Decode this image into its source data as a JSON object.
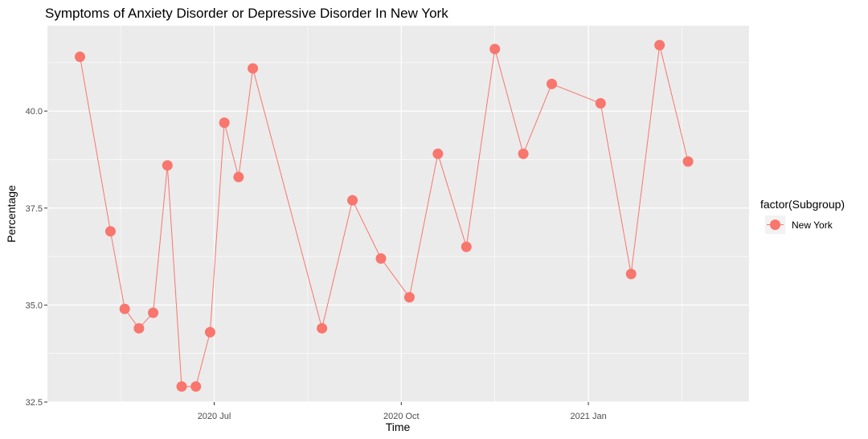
{
  "chart_data": {
    "type": "line",
    "title": "Symptoms of Anxiety Disorder or Depressive Disorder In New York",
    "xlabel": "Time",
    "ylabel": "Percentage",
    "x_ticks": [
      {
        "date": "2020-07-01",
        "label": "2020 Jul"
      },
      {
        "date": "2020-10-01",
        "label": "2020 Oct"
      },
      {
        "date": "2021-01-01",
        "label": "2021 Jan"
      }
    ],
    "y_ticks": [
      32.5,
      35.0,
      37.5,
      40.0
    ],
    "y_tick_labels": [
      "32.5",
      "35.0",
      "37.5",
      "40.0"
    ],
    "xlim": [
      "2020-04-10",
      "2021-03-21"
    ],
    "ylim": [
      32.5,
      42.2
    ],
    "grid": true,
    "legend": {
      "title": "factor(Subgroup)",
      "position": "right"
    },
    "series": [
      {
        "name": "New York",
        "color": "#F8766D",
        "points": [
          {
            "x": "2020-04-26",
            "y": 41.4
          },
          {
            "x": "2020-05-11",
            "y": 36.9
          },
          {
            "x": "2020-05-18",
            "y": 34.9
          },
          {
            "x": "2020-05-25",
            "y": 34.4
          },
          {
            "x": "2020-06-01",
            "y": 34.8
          },
          {
            "x": "2020-06-08",
            "y": 38.6
          },
          {
            "x": "2020-06-15",
            "y": 32.9
          },
          {
            "x": "2020-06-22",
            "y": 32.9
          },
          {
            "x": "2020-06-29",
            "y": 34.3
          },
          {
            "x": "2020-07-06",
            "y": 39.7
          },
          {
            "x": "2020-07-13",
            "y": 38.3
          },
          {
            "x": "2020-07-20",
            "y": 41.1
          },
          {
            "x": "2020-08-23",
            "y": 34.4
          },
          {
            "x": "2020-09-07",
            "y": 37.7
          },
          {
            "x": "2020-09-21",
            "y": 36.2
          },
          {
            "x": "2020-10-05",
            "y": 35.2
          },
          {
            "x": "2020-10-19",
            "y": 38.9
          },
          {
            "x": "2020-11-02",
            "y": 36.5
          },
          {
            "x": "2020-11-16",
            "y": 41.6
          },
          {
            "x": "2020-11-30",
            "y": 38.9
          },
          {
            "x": "2020-12-14",
            "y": 40.7
          },
          {
            "x": "2021-01-07",
            "y": 40.2
          },
          {
            "x": "2021-01-22",
            "y": 35.8
          },
          {
            "x": "2021-02-05",
            "y": 41.7
          },
          {
            "x": "2021-02-19",
            "y": 38.7
          }
        ]
      }
    ]
  }
}
